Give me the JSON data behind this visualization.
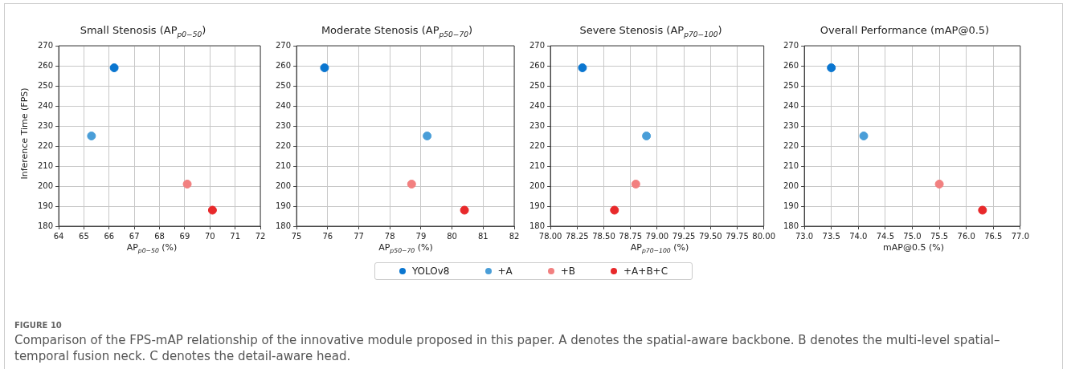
{
  "chart_data": [
    {
      "type": "scatter",
      "title": "Small Stenosis (AP$_{p0−50}$)",
      "xlabel": "AP$_{p0−50}$ (%)",
      "ylabel": "Inference Time (FPS)",
      "xlim": [
        64,
        72
      ],
      "xticks": [
        64,
        65,
        66,
        67,
        68,
        69,
        70,
        71,
        72
      ],
      "ylim": [
        180,
        270
      ],
      "yticks": [
        180,
        190,
        200,
        210,
        220,
        230,
        240,
        250,
        260,
        270
      ],
      "grid": true,
      "marker": "circle",
      "legend": "bottom",
      "series": [
        {
          "name": "YOLOv8",
          "color": "#0a76d0",
          "x": [
            66.2
          ],
          "values": [
            259
          ]
        },
        {
          "name": "+A",
          "color": "#4a9ed8",
          "x": [
            65.3
          ],
          "values": [
            225
          ]
        },
        {
          "name": "+B",
          "color": "#f28080",
          "x": [
            69.1
          ],
          "values": [
            201
          ]
        },
        {
          "name": "+A+B+C",
          "color": "#e8292b",
          "x": [
            70.1
          ],
          "values": [
            188
          ]
        }
      ],
      "annotations": [
        "FIGURE 10",
        "Comparison of the FPS-mAP relationship of the innovative module proposed in this paper. A denotes the spatial-aware backbone. B denotes the multi-level spatial–temporal fusion neck. C denotes the detail-aware head."
      ]
    },
    {
      "type": "scatter",
      "title": "Moderate Stenosis (AP$_{p50−70}$)",
      "xlabel": "AP$_{p50−70}$ (%)",
      "xlim": [
        75,
        82
      ],
      "xticks": [
        75,
        76,
        77,
        78,
        79,
        80,
        81,
        82
      ],
      "ylim": [
        180,
        270
      ],
      "yticks": [
        180,
        190,
        200,
        210,
        220,
        230,
        240,
        250,
        260,
        270
      ],
      "grid": true,
      "marker": "circle",
      "legend": "bottom",
      "series": [
        {
          "name": "YOLOv8",
          "color": "#0a76d0",
          "x": [
            75.9
          ],
          "values": [
            259
          ]
        },
        {
          "name": "+A",
          "color": "#4a9ed8",
          "x": [
            79.2
          ],
          "values": [
            225
          ]
        },
        {
          "name": "+B",
          "color": "#f28080",
          "x": [
            78.7
          ],
          "values": [
            201
          ]
        },
        {
          "name": "+A+B+C",
          "color": "#e8292b",
          "x": [
            80.4
          ],
          "values": [
            188
          ]
        }
      ]
    },
    {
      "type": "scatter",
      "title": "Severe Stenosis (AP$_{p70−100}$)",
      "xlabel": "AP$_{p70−100}$ (%)",
      "xlim": [
        78,
        80
      ],
      "xticks": [
        {
          "value": 78,
          "label": "78.00"
        },
        {
          "value": 78.25,
          "label": "78.25"
        },
        {
          "value": 78.5,
          "label": "78.50"
        },
        {
          "value": 78.75,
          "label": "78.75"
        },
        {
          "value": 79,
          "label": "79.00"
        },
        {
          "value": 79.25,
          "label": "79.25"
        },
        {
          "value": 79.5,
          "label": "79.50"
        },
        {
          "value": 79.75,
          "label": "79.75"
        },
        {
          "value": 80,
          "label": "80.00"
        }
      ],
      "ylim": [
        180,
        270
      ],
      "yticks": [
        180,
        190,
        200,
        210,
        220,
        230,
        240,
        250,
        260,
        270
      ],
      "grid": true,
      "marker": "circle",
      "legend": "bottom",
      "series": [
        {
          "name": "YOLOv8",
          "color": "#0a76d0",
          "x": [
            78.3
          ],
          "values": [
            259
          ]
        },
        {
          "name": "+A",
          "color": "#4a9ed8",
          "x": [
            78.9
          ],
          "values": [
            225
          ]
        },
        {
          "name": "+B",
          "color": "#f28080",
          "x": [
            78.8
          ],
          "values": [
            201
          ]
        },
        {
          "name": "+A+B+C",
          "color": "#e8292b",
          "x": [
            78.6
          ],
          "values": [
            188
          ]
        }
      ]
    },
    {
      "type": "scatter",
      "title": "Overall Performance (mAP@0.5)",
      "xlabel": "mAP@0.5 (%)",
      "xlim": [
        73,
        77
      ],
      "xticks": [
        {
          "value": 73,
          "label": "73.0"
        },
        73.5,
        {
          "value": 74,
          "label": "74.0"
        },
        74.5,
        {
          "value": 75,
          "label": "75.0"
        },
        75.5,
        {
          "value": 76,
          "label": "76.0"
        },
        76.5,
        {
          "value": 77,
          "label": "77.0"
        }
      ],
      "ylim": [
        180,
        270
      ],
      "yticks": [
        180,
        190,
        200,
        210,
        220,
        230,
        240,
        250,
        260,
        270
      ],
      "grid": true,
      "marker": "circle",
      "legend": "bottom",
      "series": [
        {
          "name": "YOLOv8",
          "color": "#0a76d0",
          "x": [
            73.5
          ],
          "values": [
            259
          ]
        },
        {
          "name": "+A",
          "color": "#4a9ed8",
          "x": [
            74.1
          ],
          "values": [
            225
          ]
        },
        {
          "name": "+B",
          "color": "#f28080",
          "x": [
            75.5
          ],
          "values": [
            201
          ]
        },
        {
          "name": "+A+B+C",
          "color": "#e8292b",
          "x": [
            76.3
          ],
          "values": [
            188
          ]
        }
      ]
    }
  ]
}
